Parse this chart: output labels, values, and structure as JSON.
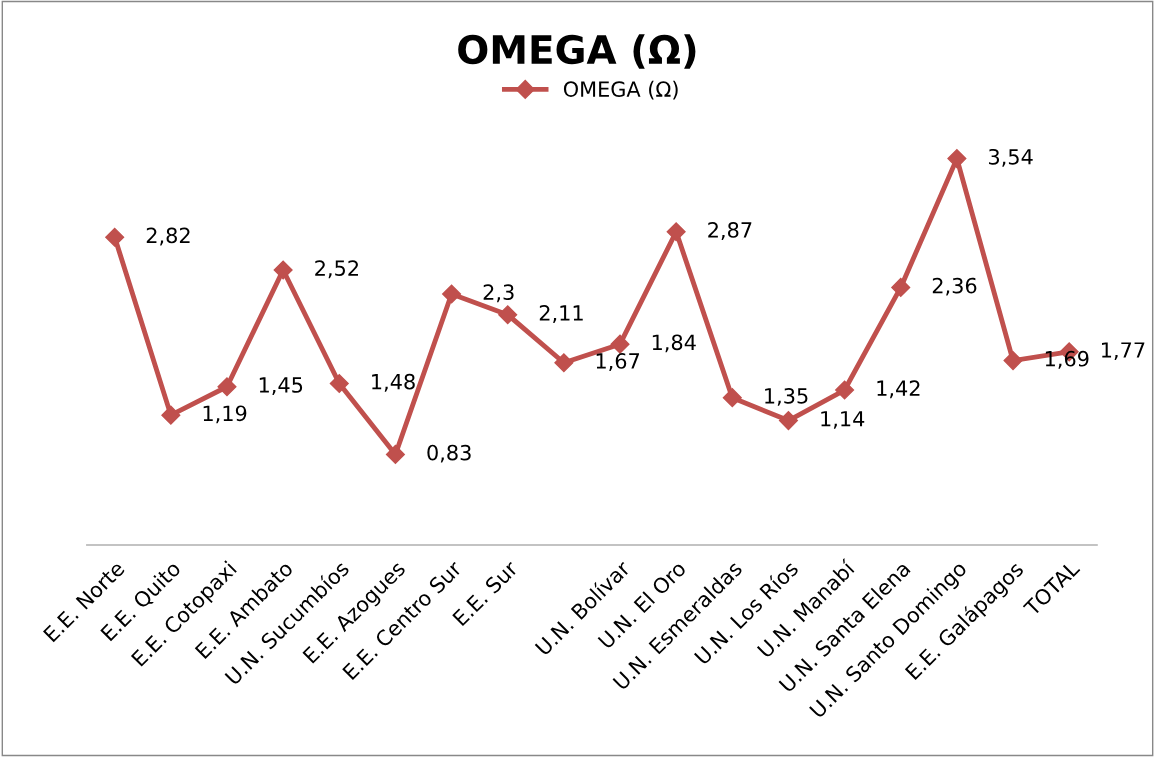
{
  "chart_data": {
    "type": "line",
    "title": "OMEGA (Ω)",
    "categories": [
      "E.E. Norte",
      "E.E. Quito",
      "E.E. Cotopaxi",
      "E.E. Ambato",
      "U.N. Sucumbíos",
      "E.E. Azogues",
      "E.E. Centro Sur",
      "E.E. Sur",
      null,
      "U.N. Bolívar",
      "U.N. El Oro",
      "U.N. Esmeraldas",
      "U.N. Los Ríos",
      "U.N. Manabí",
      "U.N. Santa Elena",
      "U.N. Santo Domingo",
      "E.E. Galápagos",
      "TOTAL"
    ],
    "series": [
      {
        "name": "OMEGA (Ω)",
        "color": "#c0504d",
        "values": [
          2.82,
          1.19,
          1.45,
          2.52,
          1.48,
          0.83,
          2.3,
          2.11,
          1.67,
          1.84,
          2.87,
          1.35,
          1.14,
          1.42,
          2.36,
          3.54,
          1.69,
          1.77
        ],
        "value_labels": [
          "2,82",
          "1,19",
          "1,45",
          "2,52",
          "1,48",
          "0,83",
          "2,3",
          "2,11",
          "1,67",
          "1,84",
          "2,87",
          "1,35",
          "1,14",
          "1,42",
          "2,36",
          "3,54",
          "1,69",
          "1,77"
        ]
      }
    ],
    "marker": "diamond",
    "legend": "top",
    "grid": false,
    "tick_labels": "x"
  }
}
